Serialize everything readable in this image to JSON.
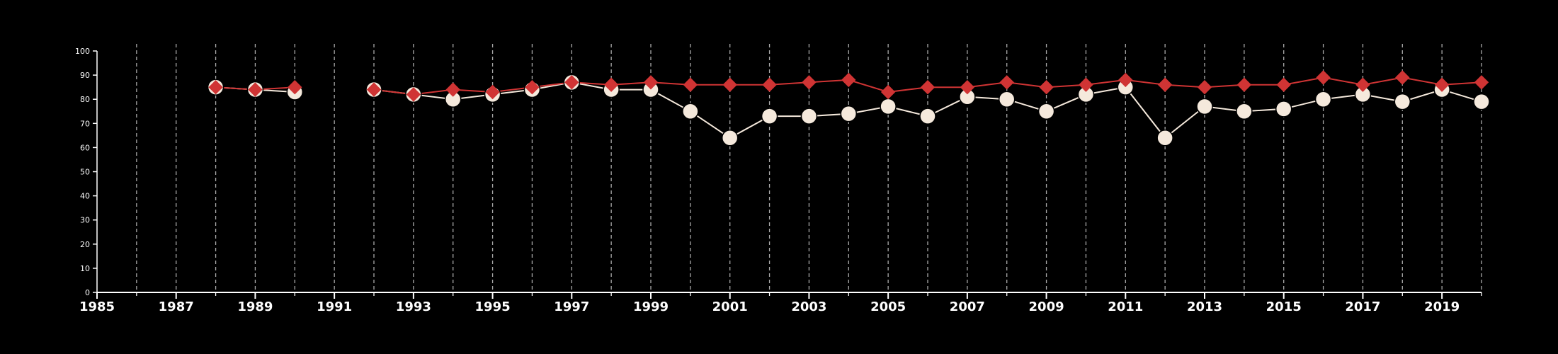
{
  "colors": {
    "background": "#000000",
    "axis": "#ffffff",
    "grid": "#aaaaaa",
    "series_circle": "#f5e9dc",
    "series_diamond": "#d03434"
  },
  "chart_data": {
    "type": "line",
    "title": "",
    "xlabel": "",
    "ylabel": "",
    "xlim": [
      1985,
      2020
    ],
    "ylim": [
      0,
      100
    ],
    "x_ticks": [
      1985,
      1987,
      1989,
      1991,
      1993,
      1995,
      1997,
      1999,
      2001,
      2003,
      2005,
      2007,
      2009,
      2011,
      2013,
      2015,
      2017,
      2019
    ],
    "y_ticks": [
      0,
      10,
      20,
      30,
      40,
      50,
      60,
      70,
      80,
      90,
      100
    ],
    "grid": "vertical dashed lines at each year",
    "legend": "none",
    "x": [
      1988,
      1989,
      1990,
      1992,
      1993,
      1994,
      1995,
      1996,
      1997,
      1998,
      1999,
      2000,
      2001,
      2002,
      2003,
      2004,
      2005,
      2006,
      2007,
      2008,
      2009,
      2010,
      2011,
      2012,
      2013,
      2014,
      2015,
      2016,
      2017,
      2018,
      2019,
      2020
    ],
    "series": [
      {
        "marker": "circle",
        "color": "#f5e9dc",
        "values": [
          85,
          84,
          83,
          84,
          82,
          80,
          82,
          84,
          87,
          84,
          84,
          75,
          64,
          73,
          73,
          74,
          77,
          73,
          81,
          80,
          75,
          82,
          85,
          64,
          77,
          75,
          76,
          80,
          82,
          79,
          84,
          79
        ]
      },
      {
        "marker": "diamond",
        "color": "#d03434",
        "values": [
          85,
          84,
          85,
          84,
          82,
          84,
          83,
          85,
          87,
          86,
          87,
          86,
          86,
          86,
          87,
          88,
          83,
          85,
          85,
          87,
          85,
          86,
          88,
          86,
          85,
          86,
          86,
          89,
          86,
          89,
          86,
          87
        ]
      }
    ]
  }
}
